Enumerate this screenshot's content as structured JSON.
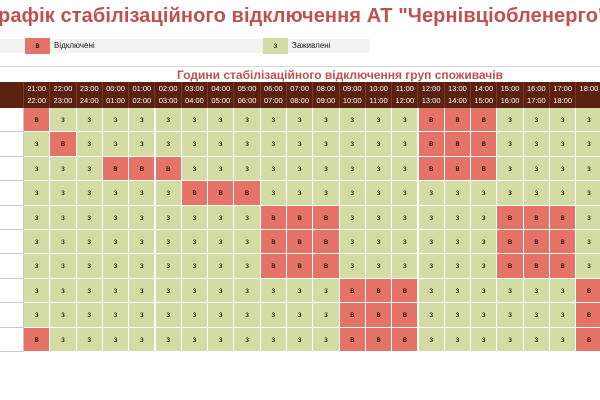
{
  "title": "рафік стабілізаційного відключення АТ \"Чернівціобленерго\"",
  "legend": {
    "off_symbol": "в",
    "off_label": "Відключені",
    "on_symbol": "з",
    "on_label": "Заживлені"
  },
  "colors": {
    "off": "#e67368",
    "on": "#d3dca5",
    "header_bg": "#5a2010",
    "title": "#c0504d"
  },
  "schedule": {
    "header": "Години стабілізаційного відключення груп споживачів",
    "hours": [
      {
        "from": "21:00",
        "to": "22:00"
      },
      {
        "from": "22:00",
        "to": "23:00"
      },
      {
        "from": "23:00",
        "to": "24:00"
      },
      {
        "from": "00:00",
        "to": "01:00"
      },
      {
        "from": "01:00",
        "to": "02:00"
      },
      {
        "from": "02:00",
        "to": "03:00"
      },
      {
        "from": "03:00",
        "to": "04:00"
      },
      {
        "from": "04:00",
        "to": "05:00"
      },
      {
        "from": "05:00",
        "to": "06:00"
      },
      {
        "from": "06:00",
        "to": "07:00"
      },
      {
        "from": "07:00",
        "to": "08:00"
      },
      {
        "from": "08:00",
        "to": "09:00"
      },
      {
        "from": "09:00",
        "to": "10:00"
      },
      {
        "from": "10:00",
        "to": "11:00"
      },
      {
        "from": "11:00",
        "to": "12:00"
      },
      {
        "from": "12:00",
        "to": "13:00"
      },
      {
        "from": "13:00",
        "to": "14:00"
      },
      {
        "from": "14:00",
        "to": "15:00"
      },
      {
        "from": "15:00",
        "to": "16:00"
      },
      {
        "from": "16:00",
        "to": "17:00"
      },
      {
        "from": "17:00",
        "to": "18:00"
      },
      {
        "from": "18:00",
        "to": ""
      }
    ],
    "rows": [
      [
        "в",
        "з",
        "з",
        "з",
        "з",
        "з",
        "з",
        "з",
        "з",
        "з",
        "з",
        "з",
        "з",
        "з",
        "з",
        "в",
        "в",
        "в",
        "з",
        "з",
        "з",
        "з"
      ],
      [
        "з",
        "в",
        "з",
        "з",
        "з",
        "з",
        "з",
        "з",
        "з",
        "з",
        "з",
        "з",
        "з",
        "з",
        "з",
        "в",
        "в",
        "в",
        "з",
        "з",
        "з",
        "з"
      ],
      [
        "з",
        "з",
        "з",
        "в",
        "в",
        "в",
        "з",
        "з",
        "з",
        "з",
        "з",
        "з",
        "з",
        "з",
        "з",
        "в",
        "в",
        "в",
        "з",
        "з",
        "з",
        "з"
      ],
      [
        "з",
        "з",
        "з",
        "з",
        "з",
        "з",
        "в",
        "в",
        "в",
        "з",
        "з",
        "з",
        "з",
        "з",
        "з",
        "з",
        "з",
        "з",
        "з",
        "з",
        "з",
        "з"
      ],
      [
        "з",
        "з",
        "з",
        "з",
        "з",
        "з",
        "з",
        "з",
        "з",
        "в",
        "в",
        "в",
        "з",
        "з",
        "з",
        "з",
        "з",
        "з",
        "в",
        "в",
        "в",
        "з"
      ],
      [
        "з",
        "з",
        "з",
        "з",
        "з",
        "з",
        "з",
        "з",
        "з",
        "в",
        "в",
        "в",
        "з",
        "з",
        "з",
        "з",
        "з",
        "з",
        "в",
        "в",
        "в",
        "з"
      ],
      [
        "з",
        "з",
        "з",
        "з",
        "з",
        "з",
        "з",
        "з",
        "з",
        "в",
        "в",
        "в",
        "з",
        "з",
        "з",
        "з",
        "з",
        "з",
        "в",
        "в",
        "в",
        "з"
      ],
      [
        "з",
        "з",
        "з",
        "з",
        "з",
        "з",
        "з",
        "з",
        "з",
        "з",
        "з",
        "з",
        "в",
        "в",
        "в",
        "з",
        "з",
        "з",
        "з",
        "з",
        "з",
        "в"
      ],
      [
        "з",
        "з",
        "з",
        "з",
        "з",
        "з",
        "з",
        "з",
        "з",
        "з",
        "з",
        "з",
        "в",
        "в",
        "в",
        "з",
        "з",
        "з",
        "з",
        "з",
        "з",
        "в"
      ],
      [
        "в",
        "з",
        "з",
        "з",
        "з",
        "з",
        "з",
        "з",
        "з",
        "з",
        "з",
        "з",
        "в",
        "в",
        "в",
        "з",
        "з",
        "з",
        "з",
        "з",
        "з",
        "в"
      ]
    ]
  }
}
